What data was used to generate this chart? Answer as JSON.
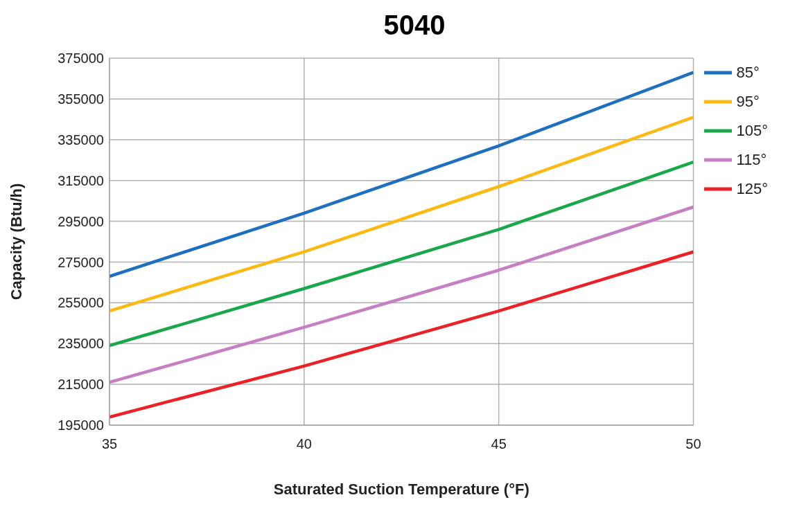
{
  "chart_data": {
    "type": "line",
    "title": "5040",
    "xlabel": "Saturated Suction Temperature (°F)",
    "ylabel": "Capacity (Btu/h)",
    "x": [
      35,
      40,
      45,
      50
    ],
    "series": [
      {
        "name": "85°",
        "color": "#1f6fbf",
        "values": [
          268000,
          299000,
          332000,
          368000
        ]
      },
      {
        "name": "95°",
        "color": "#fcb813",
        "values": [
          251000,
          280000,
          312000,
          346000
        ]
      },
      {
        "name": "105°",
        "color": "#1aa64a",
        "values": [
          234000,
          262000,
          291000,
          324000
        ]
      },
      {
        "name": "115°",
        "color": "#c77fc4",
        "values": [
          216000,
          243000,
          271000,
          302000
        ]
      },
      {
        "name": "125°",
        "color": "#ea2127",
        "values": [
          199000,
          224000,
          251000,
          280000
        ]
      }
    ],
    "xlim": [
      35,
      50
    ],
    "xticks": [
      35,
      40,
      45,
      50
    ],
    "ylim": [
      195000,
      375000
    ],
    "yticks": [
      195000,
      215000,
      235000,
      255000,
      275000,
      295000,
      315000,
      335000,
      355000,
      375000
    ],
    "grid": true,
    "legend": "right",
    "marker": "none",
    "line_style": "solid"
  }
}
